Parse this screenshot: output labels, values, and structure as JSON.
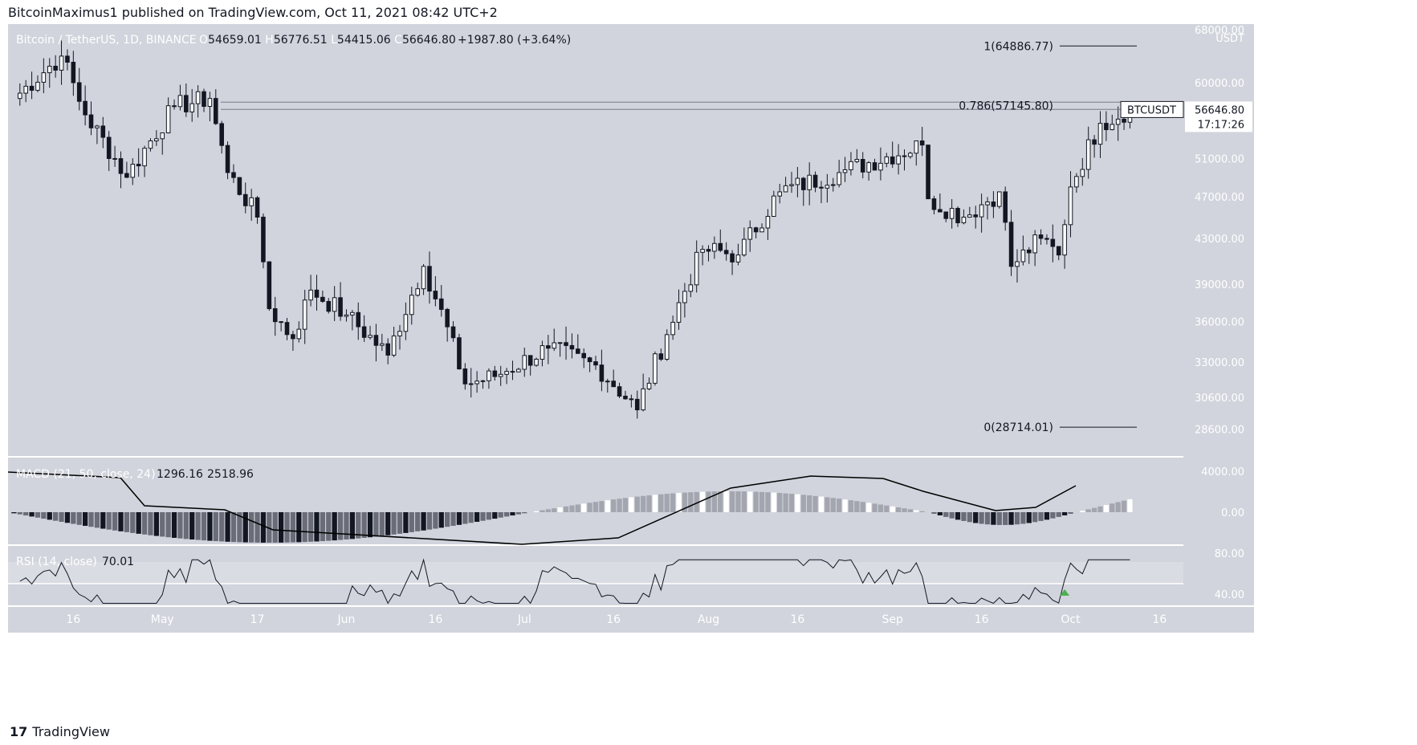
{
  "header": {
    "publisher_line": "BitcoinMaximus1 published on TradingView.com, Oct 11, 2021 08:42 UTC+2",
    "symbol_line": "Bitcoin / TetherUS, 1D, BINANCE",
    "ohlc": [
      {
        "k": "O",
        "v": "54659.01"
      },
      {
        "k": "H",
        "v": "56776.51"
      },
      {
        "k": "L",
        "v": "54415.06"
      },
      {
        "k": "C",
        "v": "56646.80"
      }
    ],
    "change": "+1987.80 (+3.64%)"
  },
  "price_axis": {
    "unit": "USDT",
    "top_label": "68000.00",
    "ticks": [
      "60000.00",
      "51000.00",
      "47000.00",
      "43000.00",
      "39000.00",
      "36000.00",
      "33000.00",
      "30600.00",
      "28600.00"
    ],
    "last_symbol": "BTCUSDT",
    "last_price": "56646.80",
    "countdown": "17:17:26"
  },
  "fib": [
    {
      "label": "1(64886.77)",
      "value": 64886.77
    },
    {
      "label": "0.786(57145.80)",
      "value": 57145.8
    },
    {
      "label": "0(28714.01)",
      "value": 28714.01
    }
  ],
  "time_axis": [
    "16",
    "May",
    "17",
    "Jun",
    "16",
    "Jul",
    "16",
    "Aug",
    "16",
    "Sep",
    "16",
    "Oct",
    "16"
  ],
  "macd": {
    "label": "MACD (21, 50, close, 24)",
    "v1": "1296.16",
    "v2": "2518.96",
    "ticks": [
      "4000.00",
      "0.00"
    ]
  },
  "rsi": {
    "label": "RSI (14, close)",
    "v1": "70.01",
    "ticks": [
      "80.00",
      "40.00"
    ]
  },
  "brand": {
    "logo": "17",
    "name": "TradingView"
  },
  "colors": {
    "bg": "#d1d4dc",
    "up": "#ffffff",
    "down": "#131722",
    "signal": "#000000",
    "rsi_band": "#dadce3",
    "marker": "#4caf50"
  },
  "chart_data": {
    "type": "candlestick",
    "title": "Bitcoin / TetherUS, 1D, BINANCE",
    "x_range": [
      "2021-04-05",
      "2021-10-20"
    ],
    "ylim": [
      27000,
      68000
    ],
    "y_scale": "log",
    "anchors": [
      {
        "date": "2021-04-06",
        "close": 58000
      },
      {
        "date": "2021-04-14",
        "close": 63500
      },
      {
        "date": "2021-04-18",
        "close": 56000
      },
      {
        "date": "2021-04-25",
        "close": 49000
      },
      {
        "date": "2021-05-03",
        "close": 57000
      },
      {
        "date": "2021-05-09",
        "close": 58000
      },
      {
        "date": "2021-05-12",
        "close": 49500
      },
      {
        "date": "2021-05-17",
        "close": 45000
      },
      {
        "date": "2021-05-19",
        "close": 37000
      },
      {
        "date": "2021-05-23",
        "close": 34700
      },
      {
        "date": "2021-05-26",
        "close": 38500
      },
      {
        "date": "2021-06-01",
        "close": 36500
      },
      {
        "date": "2021-06-08",
        "close": 33500
      },
      {
        "date": "2021-06-14",
        "close": 40500
      },
      {
        "date": "2021-06-21",
        "close": 31500
      },
      {
        "date": "2021-06-26",
        "close": 32000
      },
      {
        "date": "2021-07-05",
        "close": 34000
      },
      {
        "date": "2021-07-13",
        "close": 32800
      },
      {
        "date": "2021-07-20",
        "close": 29800
      },
      {
        "date": "2021-07-25",
        "close": 35000
      },
      {
        "date": "2021-07-31",
        "close": 42000
      },
      {
        "date": "2021-08-06",
        "close": 41500
      },
      {
        "date": "2021-08-13",
        "close": 47500
      },
      {
        "date": "2021-08-23",
        "close": 49500
      },
      {
        "date": "2021-09-06",
        "close": 52500
      },
      {
        "date": "2021-09-07",
        "close": 46800
      },
      {
        "date": "2021-09-13",
        "close": 45000
      },
      {
        "date": "2021-09-19",
        "close": 47500
      },
      {
        "date": "2021-09-21",
        "close": 40500
      },
      {
        "date": "2021-09-26",
        "close": 43000
      },
      {
        "date": "2021-09-29",
        "close": 41500
      },
      {
        "date": "2021-10-01",
        "close": 48000
      },
      {
        "date": "2021-10-06",
        "close": 55000
      },
      {
        "date": "2021-10-11",
        "close": 56646.8
      }
    ],
    "annotations": [
      "1(64886.77)",
      "0.786(57145.80)",
      "0(28714.01)"
    ]
  }
}
